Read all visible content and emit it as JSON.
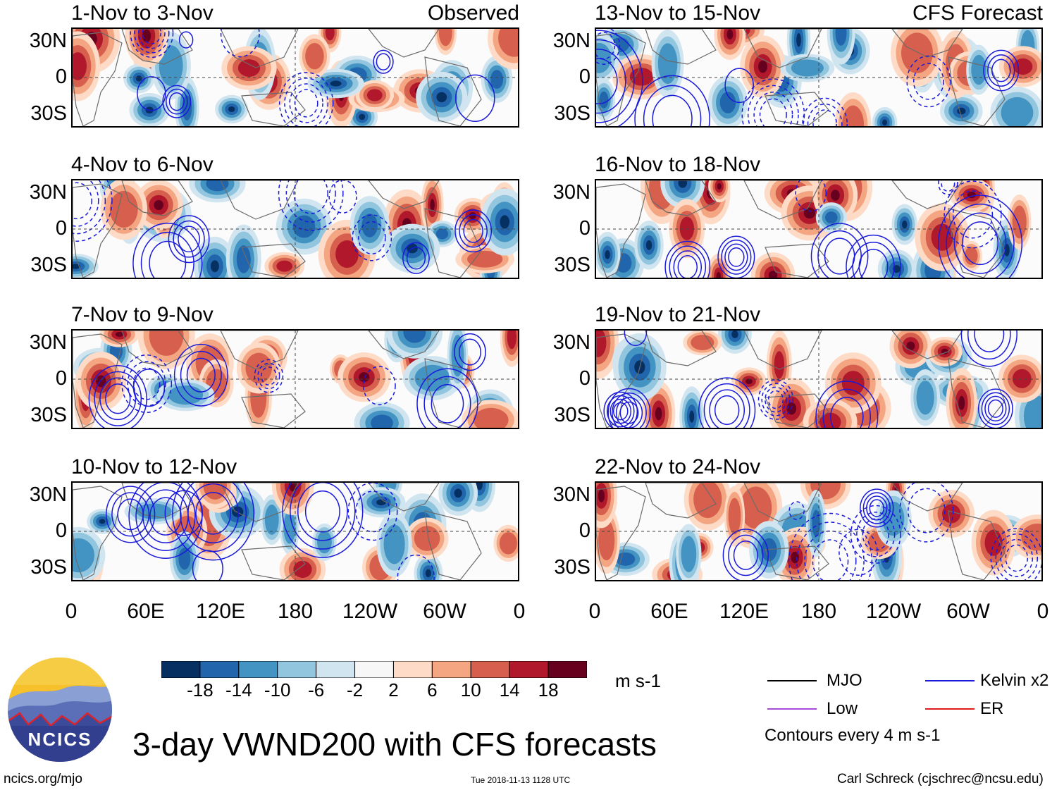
{
  "title": "3-day VWND200 with CFS forecasts",
  "footer": {
    "website": "ncics.org/mjo",
    "timestamp": "Tue 2018-11-13 1128 UTC",
    "author": "Carl Schreck (cjschrec@ncsu.edu)"
  },
  "logo_text": "NCICS",
  "panels_left": [
    {
      "title": "1-Nov to 3-Nov",
      "label": "Observed"
    },
    {
      "title": "4-Nov to 6-Nov",
      "label": ""
    },
    {
      "title": "7-Nov to 9-Nov",
      "label": ""
    },
    {
      "title": "10-Nov to 12-Nov",
      "label": ""
    }
  ],
  "panels_right": [
    {
      "title": "13-Nov to 15-Nov",
      "label": "CFS Forecast"
    },
    {
      "title": "16-Nov to 18-Nov",
      "label": ""
    },
    {
      "title": "19-Nov to 21-Nov",
      "label": ""
    },
    {
      "title": "22-Nov to 24-Nov",
      "label": ""
    }
  ],
  "y_ticks": [
    "30N",
    "0",
    "30S"
  ],
  "x_ticks": [
    "0",
    "60E",
    "120E",
    "180",
    "120W",
    "60W",
    "0"
  ],
  "colorbar": {
    "unit": "m s-1",
    "ticks": [
      "-18",
      "-14",
      "-10",
      "-6",
      "-2",
      "2",
      "6",
      "10",
      "14",
      "18"
    ],
    "colors": [
      "#053061",
      "#2166ac",
      "#4393c3",
      "#92c5de",
      "#d1e5f0",
      "#f7f7f7",
      "#fddbc7",
      "#f4a582",
      "#d6604d",
      "#b2182b",
      "#67001f"
    ]
  },
  "legend": {
    "items": [
      {
        "label": "MJO",
        "color": "#000000"
      },
      {
        "label": "Kelvin x2",
        "color": "#1a1adb"
      },
      {
        "label": "Low",
        "color": "#a64bdc"
      },
      {
        "label": "ER",
        "color": "#e01a1a"
      }
    ],
    "note": "Contours every 4 m s-1"
  }
}
